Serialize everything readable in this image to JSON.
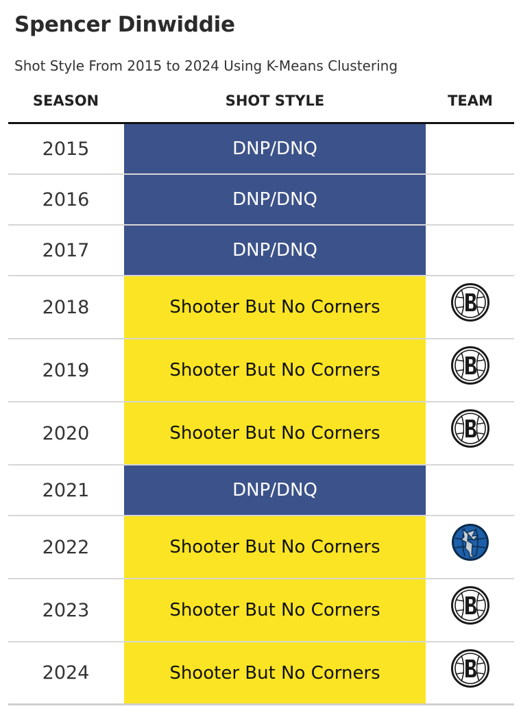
{
  "title": "Spencer Dinwiddie",
  "subtitle": "Shot Style From 2015 to 2024 Using K-Means Clustering",
  "colors": {
    "dnp": "#3c528a",
    "shooter": "#fae424",
    "header_rule": "#111111",
    "row_divider": "#d6d6d6"
  },
  "chart_data": {
    "type": "table",
    "columns": [
      "SEASON",
      "SHOT STYLE",
      "TEAM"
    ],
    "rows": [
      {
        "season": "2015",
        "shot_style": "DNP/DNQ",
        "team_logo": null
      },
      {
        "season": "2016",
        "shot_style": "DNP/DNQ",
        "team_logo": null
      },
      {
        "season": "2017",
        "shot_style": "DNP/DNQ",
        "team_logo": null
      },
      {
        "season": "2018",
        "shot_style": "Shooter But No Corners",
        "team_logo": "nets-logo-icon"
      },
      {
        "season": "2019",
        "shot_style": "Shooter But No Corners",
        "team_logo": "nets-logo-icon"
      },
      {
        "season": "2020",
        "shot_style": "Shooter But No Corners",
        "team_logo": "nets-logo-icon"
      },
      {
        "season": "2021",
        "shot_style": "DNP/DNQ",
        "team_logo": null
      },
      {
        "season": "2022",
        "shot_style": "Shooter But No Corners",
        "team_logo": "mavericks-logo-icon"
      },
      {
        "season": "2023",
        "shot_style": "Shooter But No Corners",
        "team_logo": "nets-logo-icon"
      },
      {
        "season": "2024",
        "shot_style": "Shooter But No Corners",
        "team_logo": "nets-logo-icon"
      }
    ]
  }
}
